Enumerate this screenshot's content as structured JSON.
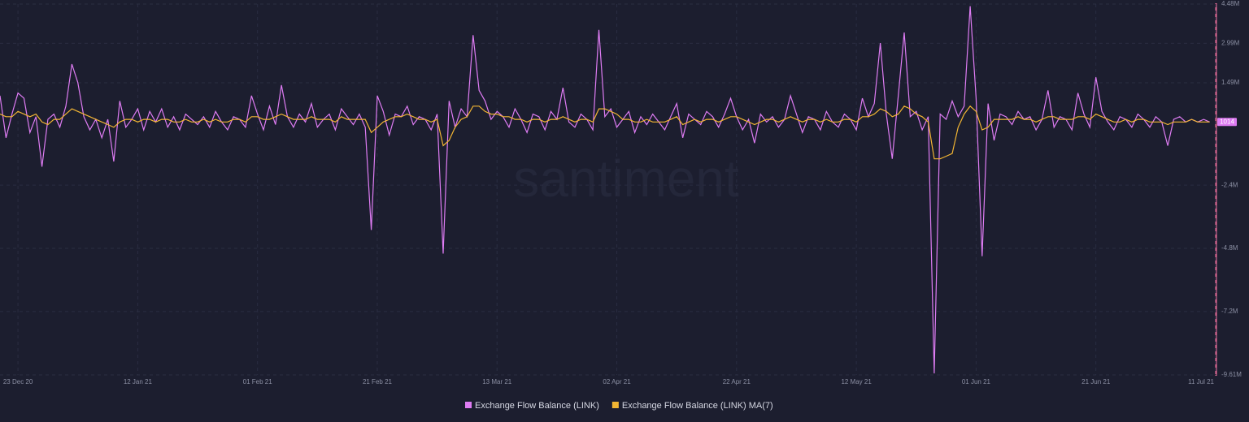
{
  "chart_data": {
    "type": "line",
    "watermark": "santiment",
    "x": [
      "2020-12-20",
      "2020-12-21",
      "2020-12-22",
      "2020-12-23",
      "2020-12-24",
      "2020-12-25",
      "2020-12-26",
      "2020-12-27",
      "2020-12-28",
      "2020-12-29",
      "2020-12-30",
      "2020-12-31",
      "2021-01-01",
      "2021-01-02",
      "2021-01-03",
      "2021-01-04",
      "2021-01-05",
      "2021-01-06",
      "2021-01-07",
      "2021-01-08",
      "2021-01-09",
      "2021-01-10",
      "2021-01-11",
      "2021-01-12",
      "2021-01-13",
      "2021-01-14",
      "2021-01-15",
      "2021-01-16",
      "2021-01-17",
      "2021-01-18",
      "2021-01-19",
      "2021-01-20",
      "2021-01-21",
      "2021-01-22",
      "2021-01-23",
      "2021-01-24",
      "2021-01-25",
      "2021-01-26",
      "2021-01-27",
      "2021-01-28",
      "2021-01-29",
      "2021-01-30",
      "2021-01-31",
      "2021-02-01",
      "2021-02-02",
      "2021-02-03",
      "2021-02-04",
      "2021-02-05",
      "2021-02-06",
      "2021-02-07",
      "2021-02-08",
      "2021-02-09",
      "2021-02-10",
      "2021-02-11",
      "2021-02-12",
      "2021-02-13",
      "2021-02-14",
      "2021-02-15",
      "2021-02-16",
      "2021-02-17",
      "2021-02-18",
      "2021-02-19",
      "2021-02-20",
      "2021-02-21",
      "2021-02-22",
      "2021-02-23",
      "2021-02-24",
      "2021-02-25",
      "2021-02-26",
      "2021-02-27",
      "2021-02-28",
      "2021-03-01",
      "2021-03-02",
      "2021-03-03",
      "2021-03-04",
      "2021-03-05",
      "2021-03-06",
      "2021-03-07",
      "2021-03-08",
      "2021-03-09",
      "2021-03-10",
      "2021-03-11",
      "2021-03-12",
      "2021-03-13",
      "2021-03-14",
      "2021-03-15",
      "2021-03-16",
      "2021-03-17",
      "2021-03-18",
      "2021-03-19",
      "2021-03-20",
      "2021-03-21",
      "2021-03-22",
      "2021-03-23",
      "2021-03-24",
      "2021-03-25",
      "2021-03-26",
      "2021-03-27",
      "2021-03-28",
      "2021-03-29",
      "2021-03-30",
      "2021-03-31",
      "2021-04-01",
      "2021-04-02",
      "2021-04-03",
      "2021-04-04",
      "2021-04-05",
      "2021-04-06",
      "2021-04-07",
      "2021-04-08",
      "2021-04-09",
      "2021-04-10",
      "2021-04-11",
      "2021-04-12",
      "2021-04-13",
      "2021-04-14",
      "2021-04-15",
      "2021-04-16",
      "2021-04-17",
      "2021-04-18",
      "2021-04-19",
      "2021-04-20",
      "2021-04-21",
      "2021-04-22",
      "2021-04-23",
      "2021-04-24",
      "2021-04-25",
      "2021-04-26",
      "2021-04-27",
      "2021-04-28",
      "2021-04-29",
      "2021-04-30",
      "2021-05-01",
      "2021-05-02",
      "2021-05-03",
      "2021-05-04",
      "2021-05-05",
      "2021-05-06",
      "2021-05-07",
      "2021-05-08",
      "2021-05-09",
      "2021-05-10",
      "2021-05-11",
      "2021-05-12",
      "2021-05-13",
      "2021-05-14",
      "2021-05-15",
      "2021-05-16",
      "2021-05-17",
      "2021-05-18",
      "2021-05-19",
      "2021-05-20",
      "2021-05-21",
      "2021-05-22",
      "2021-05-23",
      "2021-05-24",
      "2021-05-25",
      "2021-05-26",
      "2021-05-27",
      "2021-05-28",
      "2021-05-29",
      "2021-05-30",
      "2021-05-31",
      "2021-06-01",
      "2021-06-02",
      "2021-06-03",
      "2021-06-04",
      "2021-06-05",
      "2021-06-06",
      "2021-06-07",
      "2021-06-08",
      "2021-06-09",
      "2021-06-10",
      "2021-06-11",
      "2021-06-12",
      "2021-06-13",
      "2021-06-14",
      "2021-06-15",
      "2021-06-16",
      "2021-06-17",
      "2021-06-18",
      "2021-06-19",
      "2021-06-20",
      "2021-06-21",
      "2021-06-22",
      "2021-06-23",
      "2021-06-24",
      "2021-06-25",
      "2021-06-26",
      "2021-06-27",
      "2021-06-28",
      "2021-06-29",
      "2021-06-30",
      "2021-07-01",
      "2021-07-02",
      "2021-07-03",
      "2021-07-04",
      "2021-07-05",
      "2021-07-06",
      "2021-07-07",
      "2021-07-08",
      "2021-07-09",
      "2021-07-10"
    ],
    "series": [
      {
        "name": "Exchange Flow Balance (LINK)",
        "color": "#de7cf3",
        "values": [
          1000000,
          -600000,
          300000,
          1100000,
          900000,
          -400000,
          200000,
          -1700000,
          100000,
          300000,
          -200000,
          600000,
          2200000,
          1500000,
          200000,
          -300000,
          100000,
          -600000,
          100000,
          -1500000,
          800000,
          -200000,
          100000,
          500000,
          -300000,
          400000,
          0,
          500000,
          -200000,
          200000,
          -300000,
          300000,
          100000,
          -100000,
          200000,
          -200000,
          400000,
          0,
          -300000,
          200000,
          100000,
          -200000,
          1000000,
          300000,
          -300000,
          600000,
          -100000,
          1400000,
          200000,
          -200000,
          300000,
          0,
          700000,
          -200000,
          100000,
          300000,
          -300000,
          500000,
          200000,
          -100000,
          300000,
          -200000,
          -4100000,
          1000000,
          400000,
          -500000,
          300000,
          200000,
          600000,
          -100000,
          200000,
          100000,
          -300000,
          300000,
          -5000000,
          800000,
          -200000,
          500000,
          200000,
          3300000,
          1200000,
          800000,
          100000,
          400000,
          200000,
          -200000,
          500000,
          100000,
          -400000,
          300000,
          200000,
          -300000,
          400000,
          100000,
          1300000,
          0,
          -200000,
          300000,
          100000,
          -300000,
          3500000,
          200000,
          500000,
          -200000,
          100000,
          400000,
          -400000,
          200000,
          -100000,
          300000,
          0,
          -300000,
          200000,
          700000,
          -600000,
          300000,
          100000,
          -100000,
          400000,
          200000,
          -200000,
          300000,
          900000,
          200000,
          -300000,
          100000,
          -800000,
          300000,
          0,
          200000,
          -200000,
          100000,
          1000000,
          300000,
          -400000,
          200000,
          100000,
          -300000,
          400000,
          0,
          -200000,
          300000,
          100000,
          -300000,
          900000,
          200000,
          700000,
          3000000,
          300000,
          -1400000,
          1000000,
          3400000,
          200000,
          400000,
          -300000,
          200000,
          -9550000,
          300000,
          100000,
          800000,
          200000,
          600000,
          4400000,
          900000,
          -5100000,
          700000,
          -700000,
          300000,
          200000,
          -100000,
          400000,
          100000,
          200000,
          -300000,
          100000,
          1200000,
          -200000,
          200000,
          100000,
          -300000,
          1100000,
          300000,
          -200000,
          1700000,
          400000,
          0,
          -300000,
          200000,
          100000,
          -200000,
          300000,
          100000,
          -200000,
          200000,
          0,
          -900000,
          100000,
          200000,
          0,
          100000,
          0,
          100000,
          1014
        ]
      },
      {
        "name": "Exchange Flow Balance (LINK) MA(7)",
        "color": "#f2b533",
        "values": [
          300000,
          200000,
          200000,
          400000,
          300000,
          200000,
          300000,
          0,
          -100000,
          100000,
          100000,
          300000,
          500000,
          400000,
          300000,
          200000,
          100000,
          0,
          -100000,
          -200000,
          0,
          100000,
          100000,
          0,
          100000,
          100000,
          0,
          100000,
          100000,
          0,
          0,
          100000,
          0,
          0,
          100000,
          0,
          100000,
          0,
          0,
          100000,
          100000,
          0,
          200000,
          200000,
          100000,
          100000,
          200000,
          300000,
          200000,
          100000,
          100000,
          100000,
          200000,
          100000,
          100000,
          100000,
          0,
          200000,
          100000,
          100000,
          100000,
          100000,
          -400000,
          -200000,
          0,
          100000,
          200000,
          200000,
          300000,
          200000,
          100000,
          100000,
          0,
          100000,
          -900000,
          -700000,
          -200000,
          100000,
          200000,
          600000,
          600000,
          400000,
          300000,
          300000,
          200000,
          200000,
          100000,
          100000,
          0,
          100000,
          100000,
          0,
          100000,
          100000,
          200000,
          100000,
          0,
          100000,
          100000,
          0,
          500000,
          500000,
          400000,
          300000,
          100000,
          100000,
          0,
          0,
          100000,
          0,
          0,
          0,
          100000,
          200000,
          -100000,
          0,
          100000,
          0,
          100000,
          100000,
          0,
          100000,
          200000,
          200000,
          100000,
          0,
          -100000,
          0,
          100000,
          100000,
          0,
          100000,
          200000,
          100000,
          0,
          100000,
          100000,
          0,
          100000,
          0,
          0,
          100000,
          100000,
          0,
          200000,
          200000,
          300000,
          500000,
          400000,
          200000,
          300000,
          600000,
          500000,
          300000,
          200000,
          0,
          -1400000,
          -1400000,
          -1300000,
          -1200000,
          -200000,
          300000,
          600000,
          400000,
          -300000,
          -200000,
          100000,
          100000,
          100000,
          100000,
          200000,
          100000,
          100000,
          0,
          100000,
          200000,
          200000,
          100000,
          100000,
          100000,
          200000,
          200000,
          100000,
          300000,
          200000,
          100000,
          0,
          0,
          100000,
          0,
          100000,
          100000,
          0,
          0,
          0,
          -100000,
          0,
          0,
          0,
          100000,
          0,
          0,
          0
        ]
      }
    ],
    "xlim": [
      "2020-12-20",
      "2021-07-11"
    ],
    "xticks": [
      {
        "value": "2020-12-23",
        "label": "23 Dec 20"
      },
      {
        "value": "2021-01-12",
        "label": "12 Jan 21"
      },
      {
        "value": "2021-02-01",
        "label": "01 Feb 21"
      },
      {
        "value": "2021-02-21",
        "label": "21 Feb 21"
      },
      {
        "value": "2021-03-13",
        "label": "13 Mar 21"
      },
      {
        "value": "2021-04-02",
        "label": "02 Apr 21"
      },
      {
        "value": "2021-04-22",
        "label": "22 Apr 21"
      },
      {
        "value": "2021-05-12",
        "label": "12 May 21"
      },
      {
        "value": "2021-06-01",
        "label": "01 Jun 21"
      },
      {
        "value": "2021-06-21",
        "label": "21 Jun 21"
      },
      {
        "value": "2021-07-11",
        "label": "11 Jul 21"
      }
    ],
    "ylim": [
      -9610000,
      4480000
    ],
    "yticks": [
      {
        "value": 4480000,
        "label": "4.48M"
      },
      {
        "value": 2990000,
        "label": "2.99M"
      },
      {
        "value": 1490000,
        "label": "1.49M"
      },
      {
        "value": -2400000,
        "label": "-2.4M"
      },
      {
        "value": -4800000,
        "label": "-4.8M"
      },
      {
        "value": -7200000,
        "label": "-7.2M"
      },
      {
        "value": -9610000,
        "label": "-9.61M"
      }
    ],
    "grid": true,
    "legend": "bottom"
  }
}
